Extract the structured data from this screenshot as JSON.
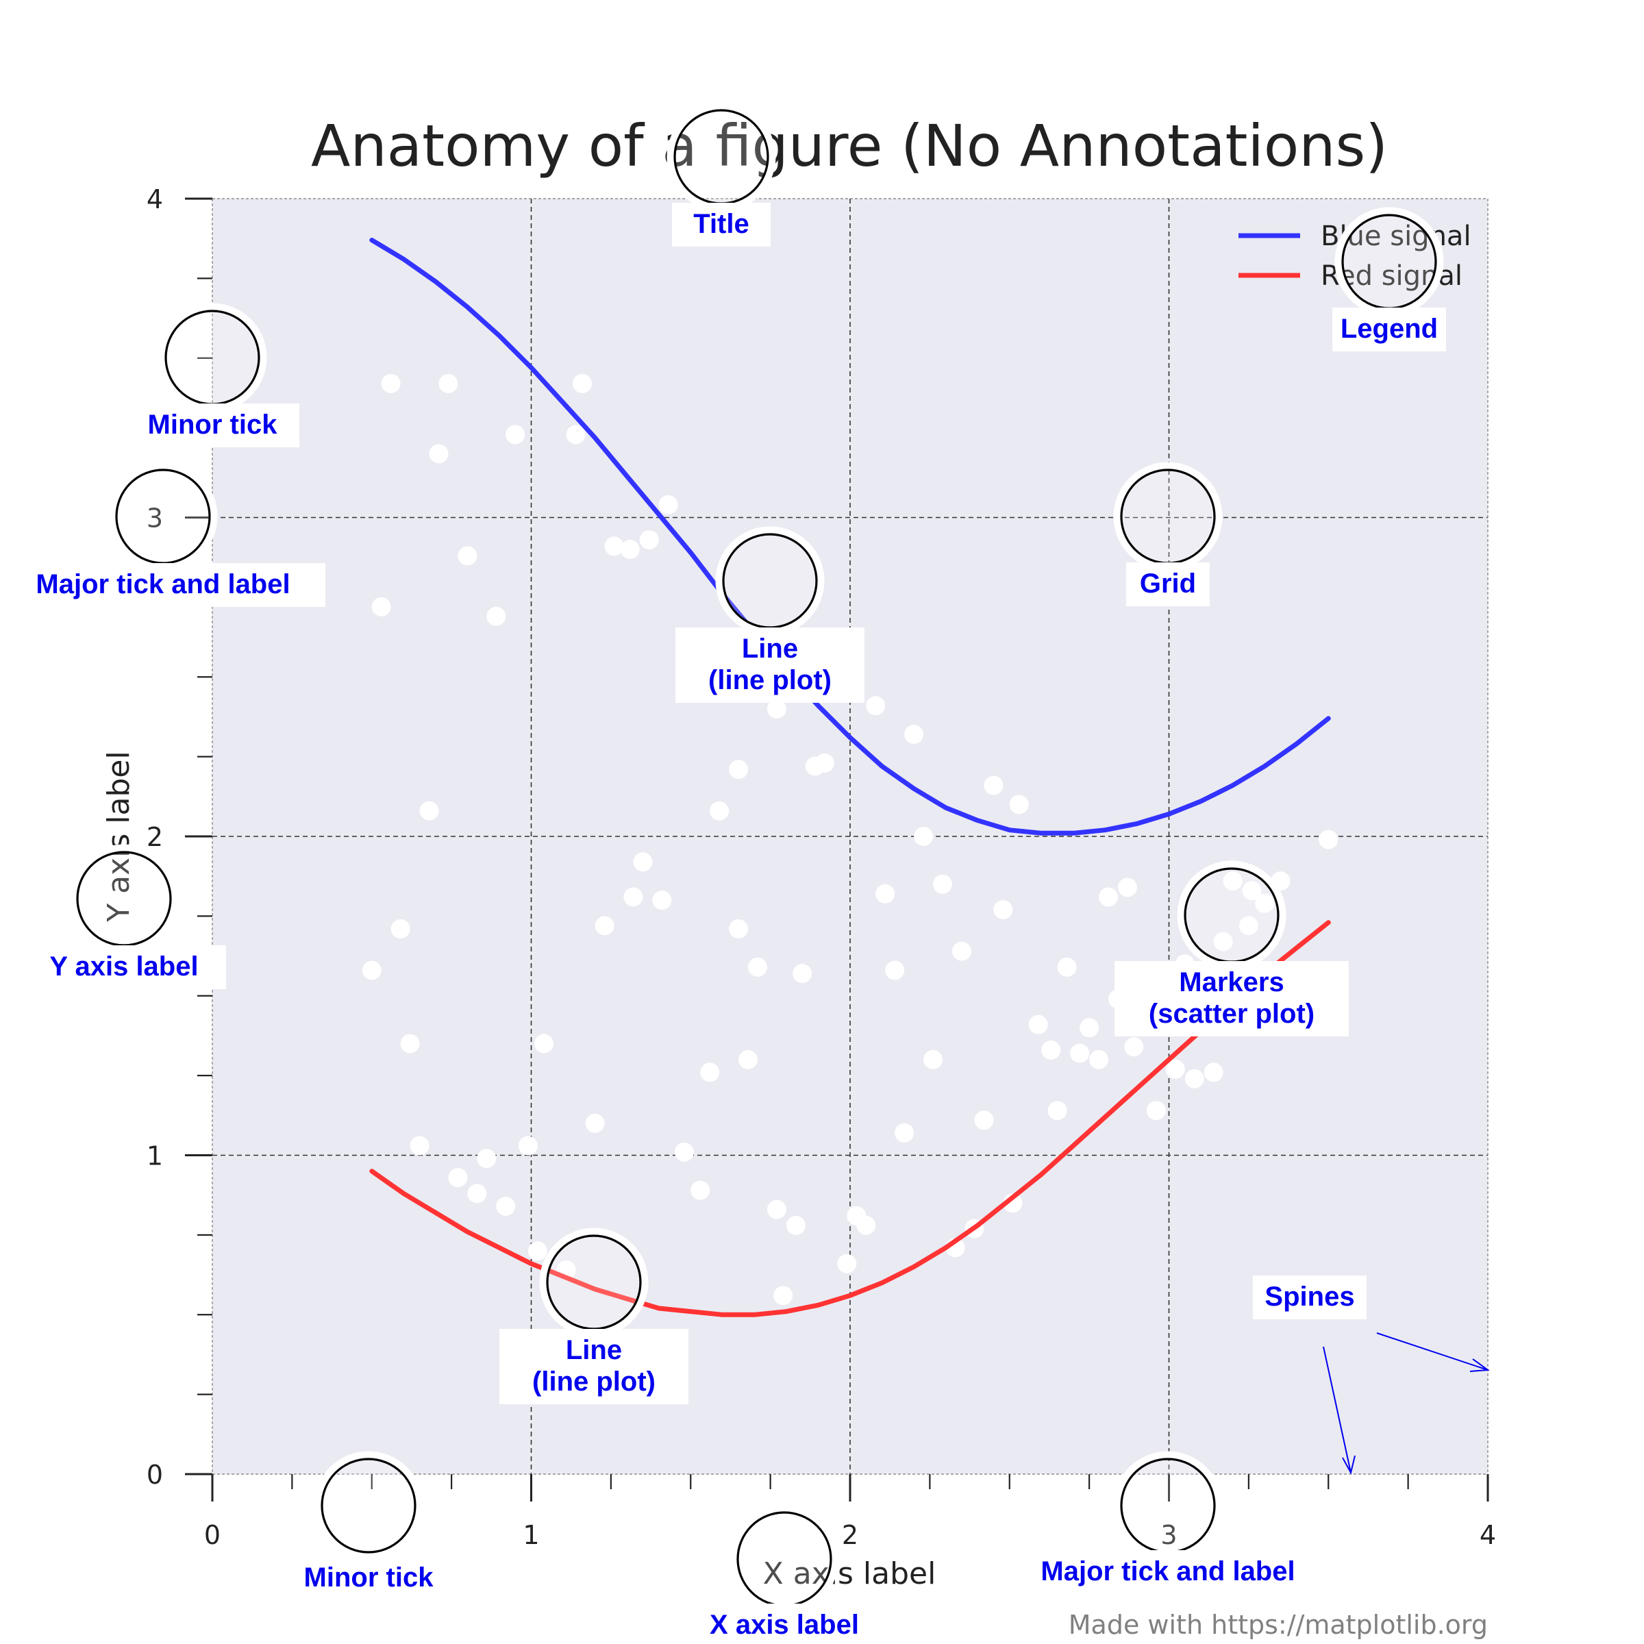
{
  "chart_data": {
    "type": "line",
    "title": "Anatomy of a figure (No Annotations)",
    "xlabel": "X axis label",
    "ylabel": "Y axis label",
    "xlim": [
      0,
      4
    ],
    "ylim": [
      0,
      4
    ],
    "x_major_ticks": [
      0,
      1,
      2,
      3,
      4
    ],
    "y_major_ticks": [
      0,
      1,
      2,
      3,
      4
    ],
    "x_tick_labels": [
      "0",
      "1",
      "2",
      "3",
      "4"
    ],
    "y_tick_labels": [
      "0",
      "1",
      "2",
      "3",
      "4"
    ],
    "minor_tick_step": 0.25,
    "grid": true,
    "legend_position": "top-right",
    "series": [
      {
        "name": "Blue signal",
        "color": "#3333ff",
        "kind": "line",
        "x": [
          0.5,
          0.6,
          0.7,
          0.8,
          0.9,
          1.0,
          1.1,
          1.2,
          1.3,
          1.4,
          1.5,
          1.6,
          1.7,
          1.8,
          1.9,
          2.0,
          2.1,
          2.2,
          2.3,
          2.4,
          2.5,
          2.6,
          2.7,
          2.8,
          2.9,
          3.0,
          3.1,
          3.2,
          3.3,
          3.4,
          3.5
        ],
        "y": [
          3.87,
          3.81,
          3.74,
          3.66,
          3.57,
          3.47,
          3.36,
          3.25,
          3.13,
          3.01,
          2.89,
          2.76,
          2.64,
          2.52,
          2.41,
          2.31,
          2.22,
          2.15,
          2.09,
          2.05,
          2.02,
          2.01,
          2.01,
          2.02,
          2.04,
          2.07,
          2.11,
          2.16,
          2.22,
          2.29,
          2.37
        ]
      },
      {
        "name": "Red signal",
        "color": "#ff3333",
        "kind": "line",
        "x": [
          0.5,
          0.6,
          0.7,
          0.8,
          0.9,
          1.0,
          1.1,
          1.2,
          1.3,
          1.4,
          1.5,
          1.6,
          1.7,
          1.8,
          1.9,
          2.0,
          2.1,
          2.2,
          2.3,
          2.4,
          2.5,
          2.6,
          2.7,
          2.8,
          2.9,
          3.0,
          3.1,
          3.2,
          3.3,
          3.4,
          3.5
        ],
        "y": [
          0.95,
          0.88,
          0.82,
          0.76,
          0.71,
          0.66,
          0.62,
          0.58,
          0.55,
          0.52,
          0.51,
          0.5,
          0.5,
          0.51,
          0.53,
          0.56,
          0.6,
          0.65,
          0.71,
          0.78,
          0.86,
          0.94,
          1.03,
          1.12,
          1.21,
          1.3,
          1.39,
          1.48,
          1.57,
          1.65,
          1.73
        ]
      },
      {
        "kind": "scatter",
        "color": "#ffffff",
        "points": [
          [
            0.56,
            3.42
          ],
          [
            0.74,
            3.42
          ],
          [
            0.71,
            3.2
          ],
          [
            0.95,
            3.26
          ],
          [
            1.14,
            3.26
          ],
          [
            1.16,
            3.42
          ],
          [
            1.43,
            3.04
          ],
          [
            1.37,
            2.93
          ],
          [
            1.31,
            2.9
          ],
          [
            1.26,
            2.91
          ],
          [
            0.8,
            2.88
          ],
          [
            0.53,
            2.72
          ],
          [
            0.89,
            2.69
          ],
          [
            0.68,
            2.08
          ],
          [
            0.59,
            1.71
          ],
          [
            0.5,
            1.58
          ],
          [
            0.62,
            1.35
          ],
          [
            0.65,
            1.03
          ],
          [
            0.77,
            0.93
          ],
          [
            0.83,
            0.88
          ],
          [
            0.86,
            0.99
          ],
          [
            0.92,
            0.84
          ],
          [
            0.99,
            1.03
          ],
          [
            1.02,
            0.7
          ],
          [
            1.04,
            1.35
          ],
          [
            1.11,
            0.64
          ],
          [
            1.2,
            1.1
          ],
          [
            1.23,
            1.72
          ],
          [
            1.32,
            1.81
          ],
          [
            1.35,
            1.92
          ],
          [
            1.41,
            1.8
          ],
          [
            1.48,
            1.01
          ],
          [
            1.53,
            2.49
          ],
          [
            1.53,
            0.89
          ],
          [
            1.56,
            1.26
          ],
          [
            1.59,
            2.08
          ],
          [
            1.65,
            1.71
          ],
          [
            1.65,
            2.21
          ],
          [
            1.68,
            1.3
          ],
          [
            1.71,
            1.59
          ],
          [
            1.77,
            2.4
          ],
          [
            1.77,
            0.83
          ],
          [
            1.79,
            0.56
          ],
          [
            1.83,
            0.78
          ],
          [
            1.85,
            1.57
          ],
          [
            1.89,
            2.22
          ],
          [
            1.92,
            2.23
          ],
          [
            1.99,
            0.66
          ],
          [
            2.02,
            0.81
          ],
          [
            2.05,
            0.78
          ],
          [
            2.08,
            2.41
          ],
          [
            2.11,
            1.82
          ],
          [
            2.14,
            1.58
          ],
          [
            2.17,
            1.07
          ],
          [
            2.2,
            2.32
          ],
          [
            2.23,
            2.0
          ],
          [
            2.26,
            1.3
          ],
          [
            2.29,
            1.85
          ],
          [
            2.33,
            0.71
          ],
          [
            2.35,
            1.64
          ],
          [
            2.39,
            0.77
          ],
          [
            2.42,
            1.11
          ],
          [
            2.45,
            2.16
          ],
          [
            2.48,
            1.77
          ],
          [
            2.51,
            0.85
          ],
          [
            2.53,
            2.1
          ],
          [
            2.59,
            1.41
          ],
          [
            2.63,
            1.33
          ],
          [
            2.65,
            1.14
          ],
          [
            2.68,
            1.59
          ],
          [
            2.72,
            1.32
          ],
          [
            2.75,
            1.4
          ],
          [
            2.78,
            1.3
          ],
          [
            2.81,
            1.81
          ],
          [
            2.84,
            1.49
          ],
          [
            2.87,
            1.84
          ],
          [
            2.89,
            1.34
          ],
          [
            2.96,
            1.14
          ],
          [
            3.02,
            1.27
          ],
          [
            3.05,
            1.6
          ],
          [
            3.08,
            1.24
          ],
          [
            3.14,
            1.26
          ],
          [
            3.17,
            1.67
          ],
          [
            3.2,
            1.86
          ],
          [
            3.25,
            1.72
          ],
          [
            3.26,
            1.83
          ],
          [
            3.3,
            1.79
          ],
          [
            3.35,
            1.86
          ],
          [
            3.5,
            1.99
          ]
        ]
      }
    ]
  },
  "legend": [
    {
      "label": "Blue signal",
      "color": "#3333ff"
    },
    {
      "label": "Red signal",
      "color": "#ff3333"
    }
  ],
  "annotations": [
    {
      "id": "title",
      "label": "Title"
    },
    {
      "id": "legend",
      "label": "Legend"
    },
    {
      "id": "minor-tick-y",
      "label": "Minor tick"
    },
    {
      "id": "major-tick-y",
      "label": "Major tick and label"
    },
    {
      "id": "grid",
      "label": "Grid"
    },
    {
      "id": "line-blue",
      "label1": "Line",
      "label2": "(line plot)"
    },
    {
      "id": "y-axis-label",
      "label": "Y axis label"
    },
    {
      "id": "markers",
      "label1": "Markers",
      "label2": "(scatter plot)"
    },
    {
      "id": "line-red",
      "label1": "Line",
      "label2": "(line plot)"
    },
    {
      "id": "spines",
      "label": "Spines"
    },
    {
      "id": "minor-tick-x",
      "label": "Minor tick"
    },
    {
      "id": "x-axis-label",
      "label": "X axis label"
    },
    {
      "id": "major-tick-x",
      "label": "Major tick and label"
    }
  ],
  "credit": "Made with https://matplotlib.org",
  "colors": {
    "axes_bg": "#eaeaf2",
    "annotation": "#0000ee",
    "blue_line": "#3333ff",
    "red_line": "#ff3333"
  }
}
